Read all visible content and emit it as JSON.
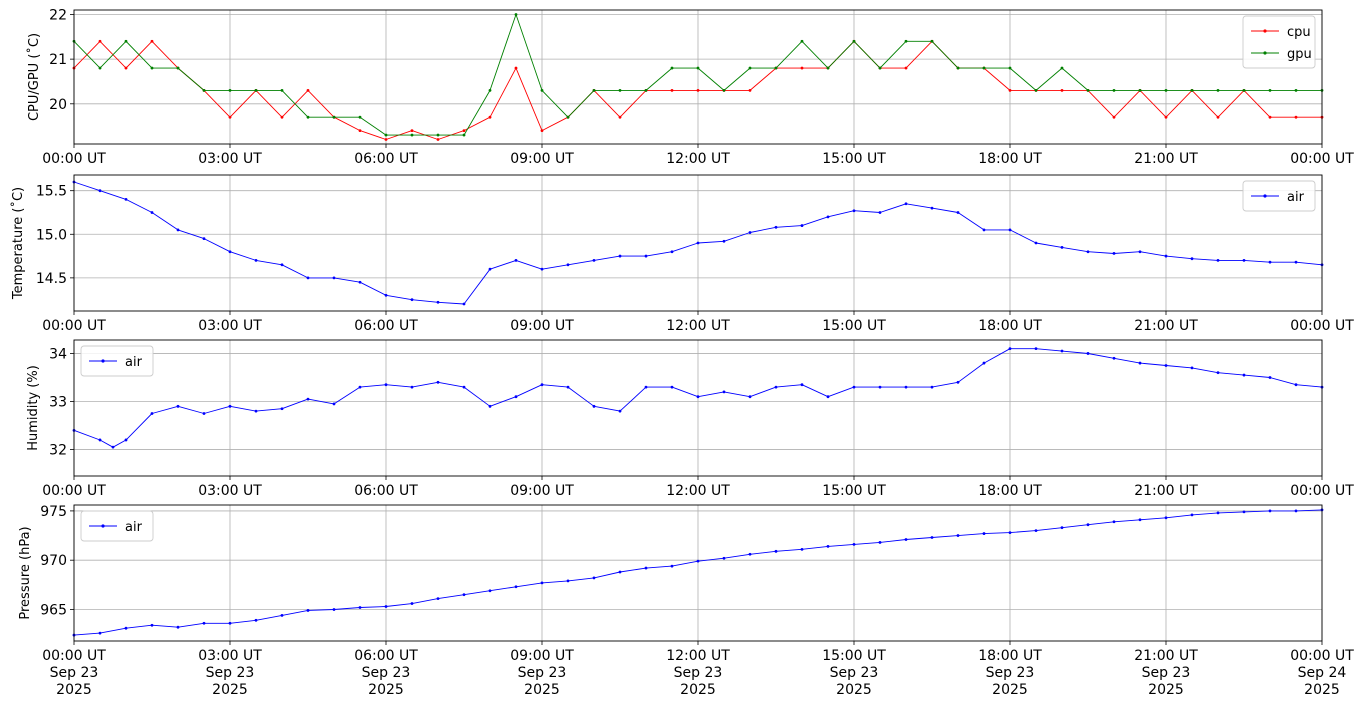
{
  "chart_data": [
    {
      "type": "line",
      "ylabel": "CPU/GPU (˚C)",
      "ylim": [
        19.1,
        22.1
      ],
      "yticks": [
        {
          "v": 20,
          "label": "20"
        },
        {
          "v": 21,
          "label": "21"
        },
        {
          "v": 22,
          "label": "22"
        }
      ],
      "xlim": [
        0,
        24
      ],
      "xtick_labels": [
        "00:00 UT",
        "03:00 UT",
        "06:00 UT",
        "09:00 UT",
        "12:00 UT",
        "15:00 UT",
        "18:00 UT",
        "21:00 UT",
        "00:00 UT"
      ],
      "grid": true,
      "legend": "upper-right",
      "series": [
        {
          "name": "cpu",
          "color": "#ff0000",
          "x": [
            0,
            0.5,
            1,
            1.5,
            2,
            2.5,
            3,
            3.5,
            4,
            4.5,
            5,
            5.5,
            6,
            6.5,
            7,
            7.5,
            8,
            8.5,
            9,
            9.5,
            10,
            10.5,
            11,
            11.5,
            12,
            12.5,
            13,
            13.5,
            14,
            14.5,
            15,
            15.5,
            16,
            16.5,
            17,
            17.5,
            18,
            18.5,
            19,
            19.5,
            20,
            20.5,
            21,
            21.5,
            22,
            22.5,
            23,
            23.5,
            24
          ],
          "values": [
            20.8,
            21.4,
            20.8,
            21.4,
            20.8,
            20.3,
            19.7,
            20.3,
            19.7,
            20.3,
            19.7,
            19.4,
            19.2,
            19.4,
            19.2,
            19.4,
            19.7,
            20.8,
            19.4,
            19.7,
            20.3,
            19.7,
            20.3,
            20.3,
            20.3,
            20.3,
            20.3,
            20.8,
            20.8,
            20.8,
            21.4,
            20.8,
            20.8,
            21.4,
            20.8,
            20.8,
            20.3,
            20.3,
            20.3,
            20.3,
            19.7,
            20.3,
            19.7,
            20.3,
            19.7,
            20.3,
            19.7,
            19.7,
            19.7
          ]
        },
        {
          "name": "gpu",
          "color": "#008000",
          "x": [
            0,
            0.5,
            1,
            1.5,
            2,
            2.5,
            3,
            3.5,
            4,
            4.5,
            5,
            5.5,
            6,
            6.5,
            7,
            7.5,
            8,
            8.5,
            9,
            9.5,
            10,
            10.5,
            11,
            11.5,
            12,
            12.5,
            13,
            13.5,
            14,
            14.5,
            15,
            15.5,
            16,
            16.5,
            17,
            17.5,
            18,
            18.5,
            19,
            19.5,
            20,
            20.5,
            21,
            21.5,
            22,
            22.5,
            23,
            23.5,
            24
          ],
          "values": [
            21.4,
            20.8,
            21.4,
            20.8,
            20.8,
            20.3,
            20.3,
            20.3,
            20.3,
            19.7,
            19.7,
            19.7,
            19.3,
            19.3,
            19.3,
            19.3,
            20.3,
            22.0,
            20.3,
            19.7,
            20.3,
            20.3,
            20.3,
            20.8,
            20.8,
            20.3,
            20.8,
            20.8,
            21.4,
            20.8,
            21.4,
            20.8,
            21.4,
            21.4,
            20.8,
            20.8,
            20.8,
            20.3,
            20.8,
            20.3,
            20.3,
            20.3,
            20.3,
            20.3,
            20.3,
            20.3,
            20.3,
            20.3,
            20.3
          ]
        }
      ]
    },
    {
      "type": "line",
      "ylabel": "Temperature (˚C)",
      "ylim": [
        14.12,
        15.68
      ],
      "yticks": [
        {
          "v": 14.5,
          "label": "14.5"
        },
        {
          "v": 15.0,
          "label": "15.0"
        },
        {
          "v": 15.5,
          "label": "15.5"
        }
      ],
      "xlim": [
        0,
        24
      ],
      "xtick_labels": [
        "00:00 UT",
        "03:00 UT",
        "06:00 UT",
        "09:00 UT",
        "12:00 UT",
        "15:00 UT",
        "18:00 UT",
        "21:00 UT",
        "00:00 UT"
      ],
      "grid": true,
      "legend": "upper-right",
      "series": [
        {
          "name": "air",
          "color": "#0000ff",
          "x": [
            0,
            0.5,
            1,
            1.5,
            2,
            2.5,
            3,
            3.5,
            4,
            4.5,
            5,
            5.5,
            6,
            6.5,
            7,
            7.5,
            8,
            8.5,
            9,
            9.5,
            10,
            10.5,
            11,
            11.5,
            12,
            12.5,
            13,
            13.5,
            14,
            14.5,
            15,
            15.5,
            16,
            16.5,
            17,
            17.5,
            18,
            18.5,
            19,
            19.5,
            20,
            20.5,
            21,
            21.5,
            22,
            22.5,
            23,
            23.5,
            24
          ],
          "values": [
            15.6,
            15.5,
            15.4,
            15.25,
            15.05,
            14.95,
            14.8,
            14.7,
            14.65,
            14.5,
            14.5,
            14.45,
            14.3,
            14.25,
            14.22,
            14.2,
            14.6,
            14.7,
            14.6,
            14.65,
            14.7,
            14.75,
            14.75,
            14.8,
            14.9,
            14.92,
            15.02,
            15.08,
            15.1,
            15.2,
            15.27,
            15.25,
            15.35,
            15.3,
            15.25,
            15.05,
            15.05,
            14.9,
            14.85,
            14.8,
            14.78,
            14.8,
            14.75,
            14.72,
            14.7,
            14.7,
            14.68,
            14.68,
            14.65
          ]
        }
      ]
    },
    {
      "type": "line",
      "ylabel": "Humidity (%)",
      "ylim": [
        31.45,
        34.28
      ],
      "yticks": [
        {
          "v": 32,
          "label": "32"
        },
        {
          "v": 33,
          "label": "33"
        },
        {
          "v": 34,
          "label": "34"
        }
      ],
      "xlim": [
        0,
        24
      ],
      "xtick_labels": [
        "00:00 UT",
        "03:00 UT",
        "06:00 UT",
        "09:00 UT",
        "12:00 UT",
        "15:00 UT",
        "18:00 UT",
        "21:00 UT",
        "00:00 UT"
      ],
      "grid": true,
      "legend": "upper-left",
      "series": [
        {
          "name": "air",
          "color": "#0000ff",
          "x": [
            0,
            0.5,
            0.75,
            1,
            1.5,
            2,
            2.5,
            3,
            3.5,
            4,
            4.5,
            5,
            5.5,
            6,
            6.5,
            7,
            7.5,
            8,
            8.5,
            9,
            9.5,
            10,
            10.5,
            11,
            11.5,
            12,
            12.5,
            13,
            13.5,
            14,
            14.5,
            15,
            15.5,
            16,
            16.5,
            17,
            17.5,
            18,
            18.5,
            19,
            19.5,
            20,
            20.5,
            21,
            21.5,
            22,
            22.5,
            23,
            23.5,
            24
          ],
          "values": [
            32.4,
            32.2,
            32.05,
            32.2,
            32.75,
            32.9,
            32.75,
            32.9,
            32.8,
            32.85,
            33.05,
            32.95,
            33.3,
            33.35,
            33.3,
            33.4,
            33.3,
            32.9,
            33.1,
            33.35,
            33.3,
            32.9,
            32.8,
            33.3,
            33.3,
            33.1,
            33.2,
            33.1,
            33.3,
            33.35,
            33.1,
            33.3,
            33.3,
            33.3,
            33.3,
            33.4,
            33.8,
            34.1,
            34.1,
            34.05,
            34.0,
            33.9,
            33.8,
            33.75,
            33.7,
            33.6,
            33.55,
            33.5,
            33.35,
            33.3
          ]
        }
      ]
    },
    {
      "type": "line",
      "ylabel": "Pressure (hPa)",
      "ylim": [
        961.8,
        975.6
      ],
      "yticks": [
        {
          "v": 965,
          "label": "965"
        },
        {
          "v": 970,
          "label": "970"
        },
        {
          "v": 975,
          "label": "975"
        }
      ],
      "xlim": [
        0,
        24
      ],
      "xtick_labels": [
        "00:00 UT\nSep 23\n2025",
        "03:00 UT\nSep 23\n2025",
        "06:00 UT\nSep 23\n2025",
        "09:00 UT\nSep 23\n2025",
        "12:00 UT\nSep 23\n2025",
        "15:00 UT\nSep 23\n2025",
        "18:00 UT\nSep 23\n2025",
        "21:00 UT\nSep 23\n2025",
        "00:00 UT\nSep 24\n2025"
      ],
      "grid": true,
      "legend": "upper-left",
      "series": [
        {
          "name": "air",
          "color": "#0000ff",
          "x": [
            0,
            0.5,
            1,
            1.5,
            2,
            2.5,
            3,
            3.5,
            4,
            4.5,
            5,
            5.5,
            6,
            6.5,
            7,
            7.5,
            8,
            8.5,
            9,
            9.5,
            10,
            10.5,
            11,
            11.5,
            12,
            12.5,
            13,
            13.5,
            14,
            14.5,
            15,
            15.5,
            16,
            16.5,
            17,
            17.5,
            18,
            18.5,
            19,
            19.5,
            20,
            20.5,
            21,
            21.5,
            22,
            22.5,
            23,
            23.5,
            24
          ],
          "values": [
            962.4,
            962.6,
            963.1,
            963.4,
            963.2,
            963.6,
            963.6,
            963.9,
            964.4,
            964.9,
            965.0,
            965.2,
            965.3,
            965.6,
            966.1,
            966.5,
            966.9,
            967.3,
            967.7,
            967.9,
            968.2,
            968.8,
            969.2,
            969.4,
            969.9,
            970.2,
            970.6,
            970.9,
            971.1,
            971.4,
            971.6,
            971.8,
            972.1,
            972.3,
            972.5,
            972.7,
            972.8,
            973.0,
            973.3,
            973.6,
            973.9,
            974.1,
            974.3,
            974.6,
            974.8,
            974.9,
            975.0,
            975.0,
            975.1
          ]
        }
      ]
    }
  ]
}
